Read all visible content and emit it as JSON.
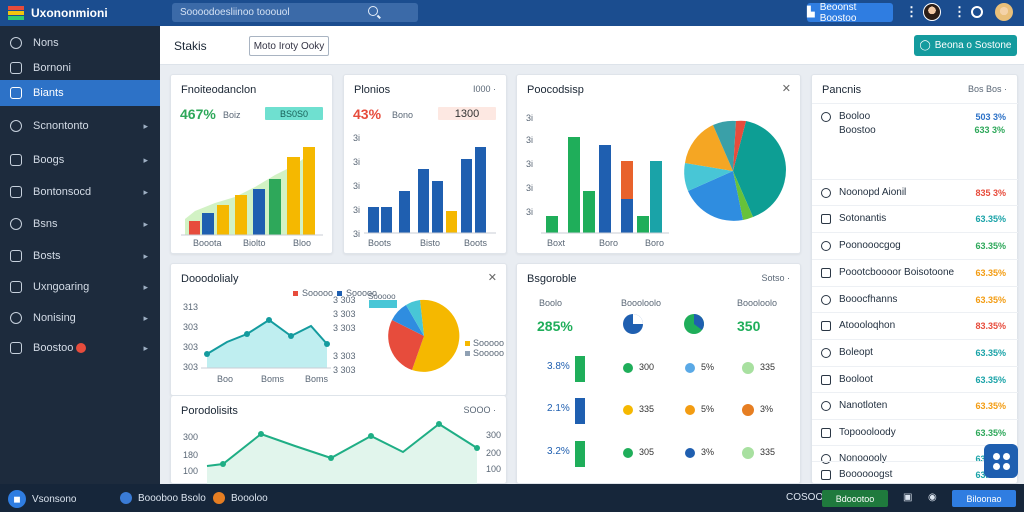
{
  "app": {
    "title": "Uxononmioni"
  },
  "search": {
    "placeholder": "Soooodoesliinoo tooouol"
  },
  "topbar": {
    "primary_button": "Beoonst Boostoo"
  },
  "sidebar": {
    "items": [
      {
        "label": "Nons",
        "icon": "home-icon"
      },
      {
        "label": "Bornoni",
        "icon": "tooth-icon"
      },
      {
        "label": "Biants",
        "icon": "chart-icon",
        "active": true
      },
      {
        "label": "Scnontonto",
        "icon": "compass-icon",
        "chevron": true
      },
      {
        "label": "Boogs",
        "icon": "dollar-icon",
        "chevron": true
      },
      {
        "label": "Bontonsocd",
        "icon": "clock-icon",
        "chevron": true
      },
      {
        "label": "Bsns",
        "icon": "chart-line-icon",
        "chevron": true
      },
      {
        "label": "Bosts",
        "icon": "table-icon",
        "chevron": true
      },
      {
        "label": "Uxngoaring",
        "icon": "link-icon",
        "chevron": true
      },
      {
        "label": "Nonising",
        "icon": "alert-icon",
        "chevron": true
      },
      {
        "label": "Boostoo",
        "icon": "grid-icon",
        "chevron": true,
        "badge": true
      }
    ]
  },
  "header": {
    "title": "Stakis",
    "filter_label": "Moto Iroty Ooky",
    "action_label": "Beona o Sostone"
  },
  "cards": {
    "c1": {
      "title": "Fnoiteodanclon",
      "value": "467%",
      "unit": "Boiz",
      "pill": "BS0S0",
      "xlabels": [
        "Booota",
        "Biolto",
        "Bloo"
      ]
    },
    "c2": {
      "title": "Plonios",
      "value": "43%",
      "unit": "Bono",
      "pill": "1300",
      "corner": "I000 ·",
      "ylabels": [
        "3i",
        "3i",
        "3i",
        "3i",
        "3i"
      ],
      "xlabels": [
        "Boots",
        "Bisto",
        "Boots"
      ]
    },
    "c3": {
      "title": "Poocodsisp",
      "ylabels": [
        "3i",
        "3i",
        "3i",
        "3i",
        "3i"
      ],
      "xlabels": [
        "Boxt",
        "Boro",
        "Boro"
      ]
    },
    "c4": {
      "title": "Pancnis",
      "corner": "Bos Bos ·"
    },
    "c5": {
      "title": "Dooodolialy",
      "legend": [
        "Sooooo",
        "Sooooo"
      ],
      "ylabels": [
        "313",
        "303",
        "303",
        "303"
      ],
      "xlabels": [
        "Boo",
        "Boms",
        "Boms"
      ],
      "right_labels": [
        "3 303",
        "3 303",
        "3 303",
        "3 303",
        "3 303"
      ],
      "pie_legend": [
        "Sooooo",
        "Sooooo"
      ],
      "pie_top": "Sooooo"
    },
    "c6": {
      "title": "Bsgoroble",
      "corner": "Sotso ·"
    },
    "c7": {
      "title": "Porodolisits",
      "corner": "SOOO ·",
      "ylabels": [
        "300",
        "180",
        "100"
      ],
      "right_labels": [
        "300",
        "200",
        "100"
      ]
    }
  },
  "stats": {
    "cols": [
      "Boolo",
      "Boooloolo",
      "Boooloolo"
    ],
    "top_values": [
      "285%",
      "350"
    ],
    "rows": [
      {
        "pct": "3.8%",
        "a": "300",
        "b": "5%",
        "c": "335"
      },
      {
        "pct": "2.1%",
        "a": "335",
        "b": "5%",
        "c": "3%"
      },
      {
        "pct": "3.2%",
        "a": "305",
        "b": "3%",
        "c": "335"
      }
    ]
  },
  "panel": {
    "rows": [
      {
        "label": "Booloo",
        "value": "503 3%",
        "color": "#2d72c7"
      },
      {
        "label": "Boostoo",
        "value": "633 3%",
        "color": "#2ea85a"
      },
      {
        "label": "Noonopd Aionil",
        "value": "835 3%",
        "color": "#e74c3c"
      },
      {
        "label": "Sotonantis",
        "value": "63.35%",
        "color": "#1aa3a8"
      },
      {
        "label": "Poonooocgog",
        "value": "63.35%",
        "color": "#2ea85a"
      },
      {
        "label": "Poootcboooor Boisotoone",
        "value": "63.35%",
        "color": "#f39c12"
      },
      {
        "label": "Booocfhanns",
        "value": "63.35%",
        "color": "#f39c12"
      },
      {
        "label": "Atoooloqhon",
        "value": "83.35%",
        "color": "#e74c3c"
      },
      {
        "label": "Boleopt",
        "value": "63.35%",
        "color": "#1aa3a8"
      },
      {
        "label": "Booloot",
        "value": "63.35%",
        "color": "#1aa3a8"
      },
      {
        "label": "Nanotloten",
        "value": "63.35%",
        "color": "#f39c12"
      },
      {
        "label": "Topoooloody",
        "value": "63.35%",
        "color": "#2ea85a"
      },
      {
        "label": "Nonooooly",
        "value": "63.35%",
        "color": "#1aa3a8"
      },
      {
        "label": "Boooooogst",
        "value": "63.35%",
        "color": "#1aa3a8"
      }
    ]
  },
  "footer": {
    "left_label": "Vsonsono",
    "link1": "Boooboo Bsolo",
    "link2": "Boooloo",
    "status": "COSOO",
    "btn1": "Bdoootoo",
    "btn2": "Biloonao"
  }
}
